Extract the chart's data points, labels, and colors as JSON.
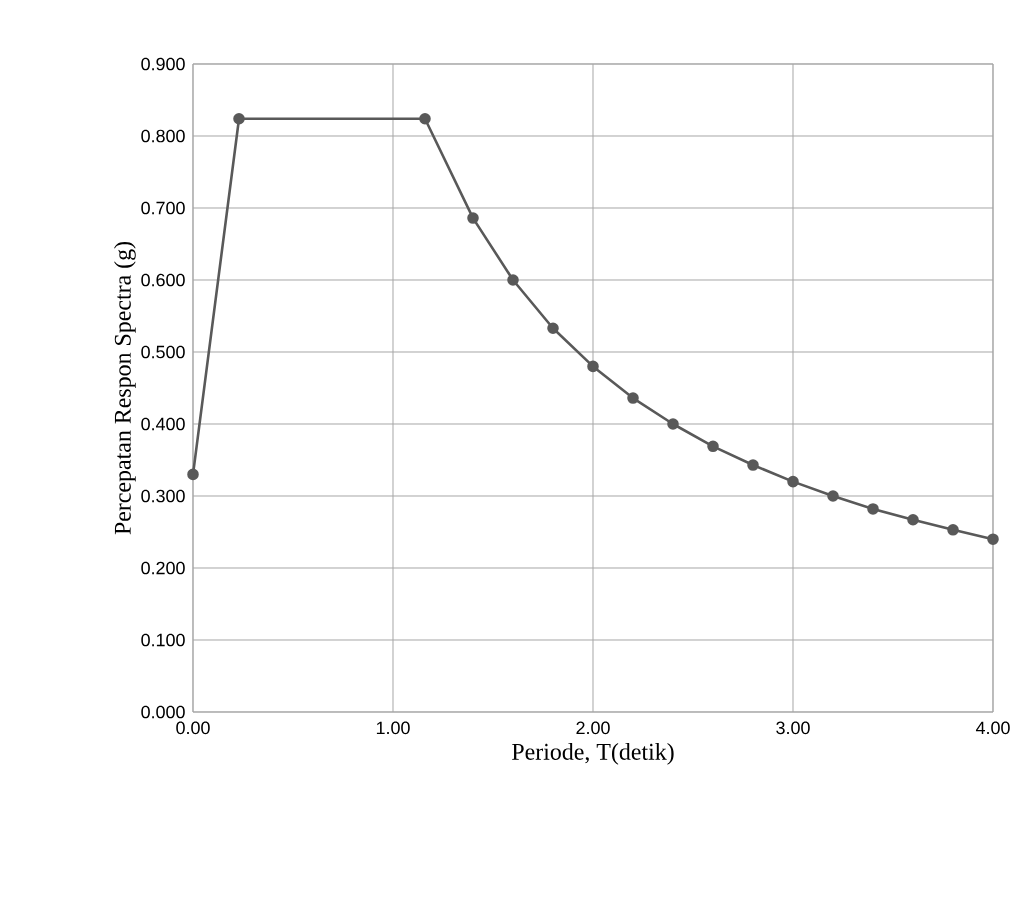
{
  "chart_data": {
    "type": "line",
    "xlabel": "Periode, T(detik)",
    "ylabel": "Percepatan Respon Spectra (g)",
    "x": [
      0,
      0.23,
      1.16,
      1.4,
      1.6,
      1.8,
      2.0,
      2.2,
      2.4,
      2.6,
      2.8,
      3.0,
      3.2,
      3.4,
      3.6,
      3.8,
      4.0
    ],
    "series": [
      {
        "color": "#595959",
        "values": [
          0.33,
          0.824,
          0.824,
          0.686,
          0.6,
          0.533,
          0.48,
          0.436,
          0.4,
          0.369,
          0.343,
          0.32,
          0.3,
          0.282,
          0.267,
          0.253,
          0.24
        ]
      }
    ],
    "xlim": [
      0,
      4
    ],
    "ylim": [
      0,
      0.9
    ],
    "xticks": [
      {
        "value": 0,
        "label": "0.00"
      },
      {
        "value": 1,
        "label": "1.00"
      },
      {
        "value": 2,
        "label": "2.00"
      },
      {
        "value": 3,
        "label": "3.00"
      },
      {
        "value": 4,
        "label": "4.00"
      }
    ],
    "yticks": [
      {
        "value": 0,
        "label": "0.000"
      },
      {
        "value": 0.1,
        "label": "0.100"
      },
      {
        "value": 0.2,
        "label": "0.200"
      },
      {
        "value": 0.3,
        "label": "0.300"
      },
      {
        "value": 0.4,
        "label": "0.400"
      },
      {
        "value": 0.5,
        "label": "0.500"
      },
      {
        "value": 0.6,
        "label": "0.600"
      },
      {
        "value": 0.7,
        "label": "0.700"
      },
      {
        "value": 0.8,
        "label": "0.800"
      },
      {
        "value": 0.9,
        "label": "0.900"
      }
    ],
    "grid": true,
    "marker": "circle",
    "line_style": "solid"
  }
}
